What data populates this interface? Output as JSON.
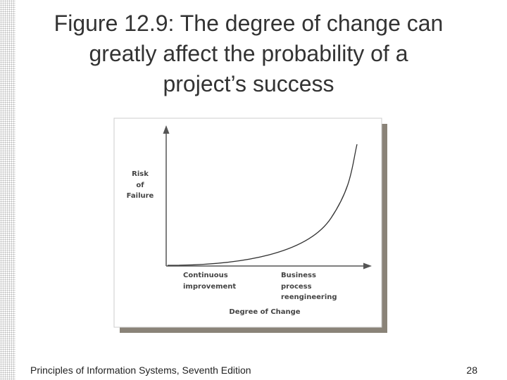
{
  "header": {
    "title_lines": [
      "Figure 12.9: The degree of change can",
      "greatly affect the probability of a",
      "project’s success"
    ]
  },
  "figure": {
    "y_axis_label": [
      "Risk",
      "of",
      "Failure"
    ],
    "x_left_label": [
      "Continuous",
      "improvement"
    ],
    "x_right_label": [
      "Business",
      "process",
      "reengineering"
    ],
    "x_axis_title": "Degree of Change"
  },
  "footer": {
    "text": "Principles of Information Systems, Seventh Edition",
    "page": "28"
  }
}
